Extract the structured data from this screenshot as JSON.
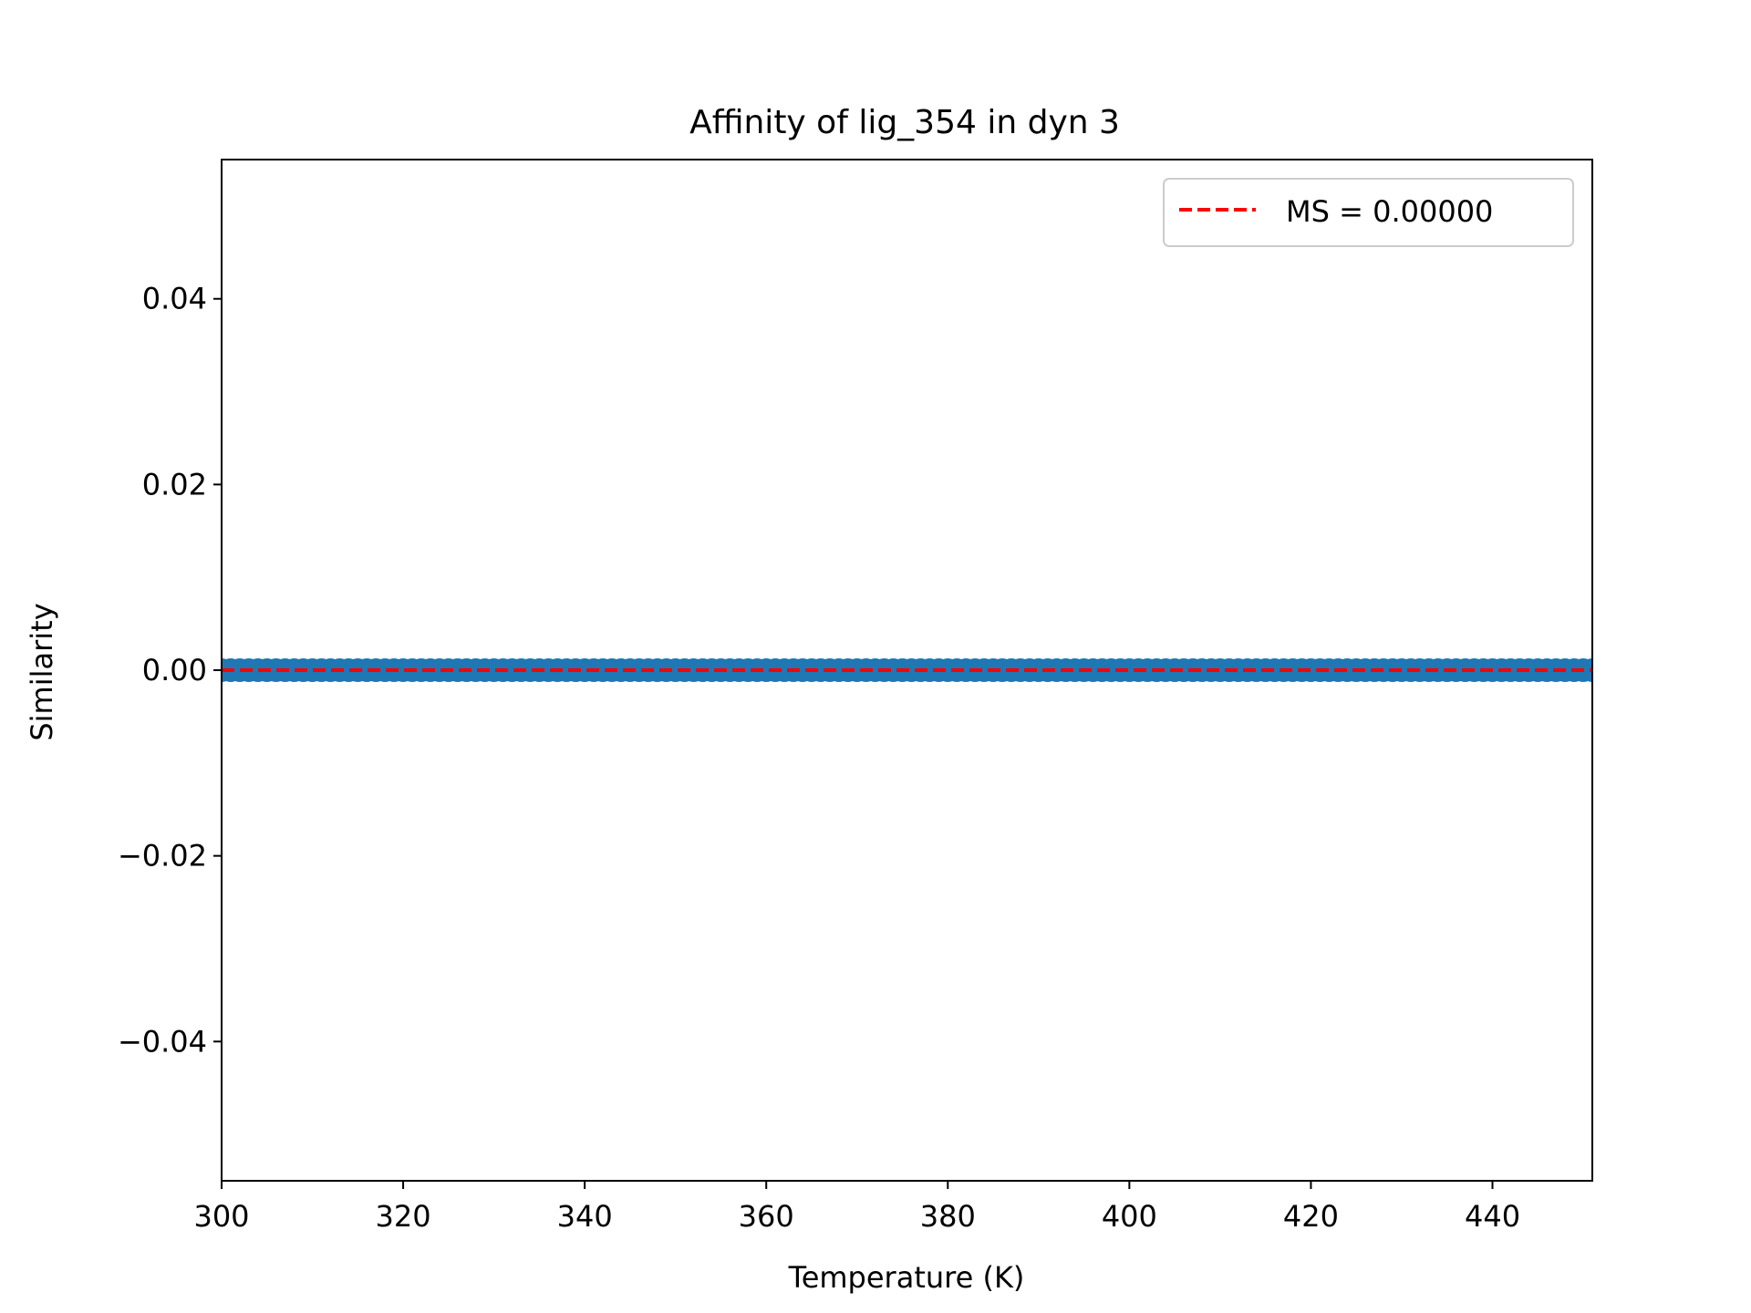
{
  "chart_data": {
    "type": "scatter",
    "title": "Affinity of lig_354 in dyn 3",
    "xlabel": "Temperature (K)",
    "ylabel": "Similarity",
    "xlim": [
      300,
      451
    ],
    "ylim": [
      -0.055,
      0.055
    ],
    "x_ticks": [
      300,
      320,
      340,
      360,
      380,
      400,
      420,
      440
    ],
    "x_tick_labels": [
      "300",
      "320",
      "340",
      "360",
      "380",
      "400",
      "420",
      "440"
    ],
    "y_ticks": [
      -0.04,
      -0.02,
      0.0,
      0.02,
      0.04
    ],
    "y_tick_labels": [
      "−0.04",
      "−0.02",
      "0.00",
      "0.02",
      "0.04"
    ],
    "grid": false,
    "legend_position": "top-right",
    "series": [
      {
        "type": "scatter",
        "color": "#1f77b4",
        "x_start": 300,
        "x_end": 451,
        "x_step": 1,
        "y_constant": 0.0
      },
      {
        "type": "hline",
        "name": "MS = 0.00000",
        "y": 0.0,
        "color": "#ff0000",
        "style": "dashed"
      }
    ]
  }
}
